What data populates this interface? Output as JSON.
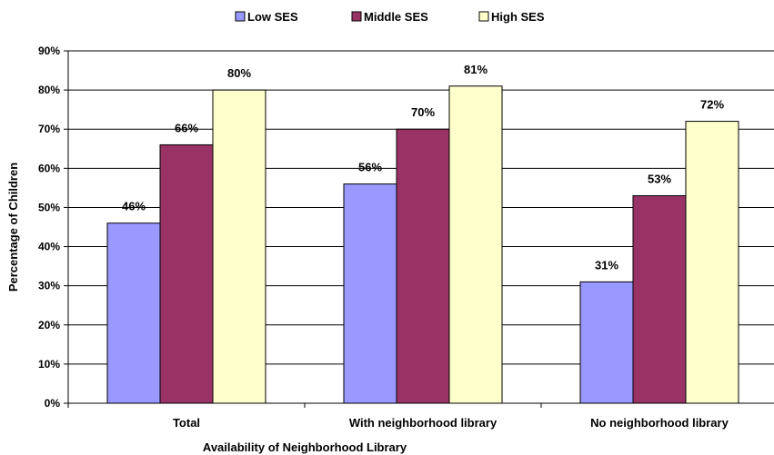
{
  "chart_data": {
    "type": "bar",
    "categories": [
      "Total",
      "With neighborhood library",
      "No neighborhood library"
    ],
    "series": [
      {
        "name": "Low SES",
        "color": "#9999ff",
        "values": [
          46,
          56,
          31
        ],
        "labels": [
          "46%",
          "56%",
          "31%"
        ]
      },
      {
        "name": "Middle SES",
        "color": "#993366",
        "values": [
          66,
          70,
          53
        ],
        "labels": [
          "66%",
          "70%",
          "53%"
        ]
      },
      {
        "name": "High SES",
        "color": "#ffffcc",
        "values": [
          80,
          81,
          72
        ],
        "labels": [
          "80%",
          "81%",
          "72%"
        ]
      }
    ],
    "ylim": [
      0,
      90
    ],
    "yticks": [
      "0%",
      "10%",
      "20%",
      "30%",
      "40%",
      "50%",
      "60%",
      "70%",
      "80%",
      "90%"
    ],
    "xlabel": "Availability of Neighborhood Library",
    "ylabel": "Percentage of Children",
    "title": "",
    "grid": true,
    "legend_position": "top"
  }
}
